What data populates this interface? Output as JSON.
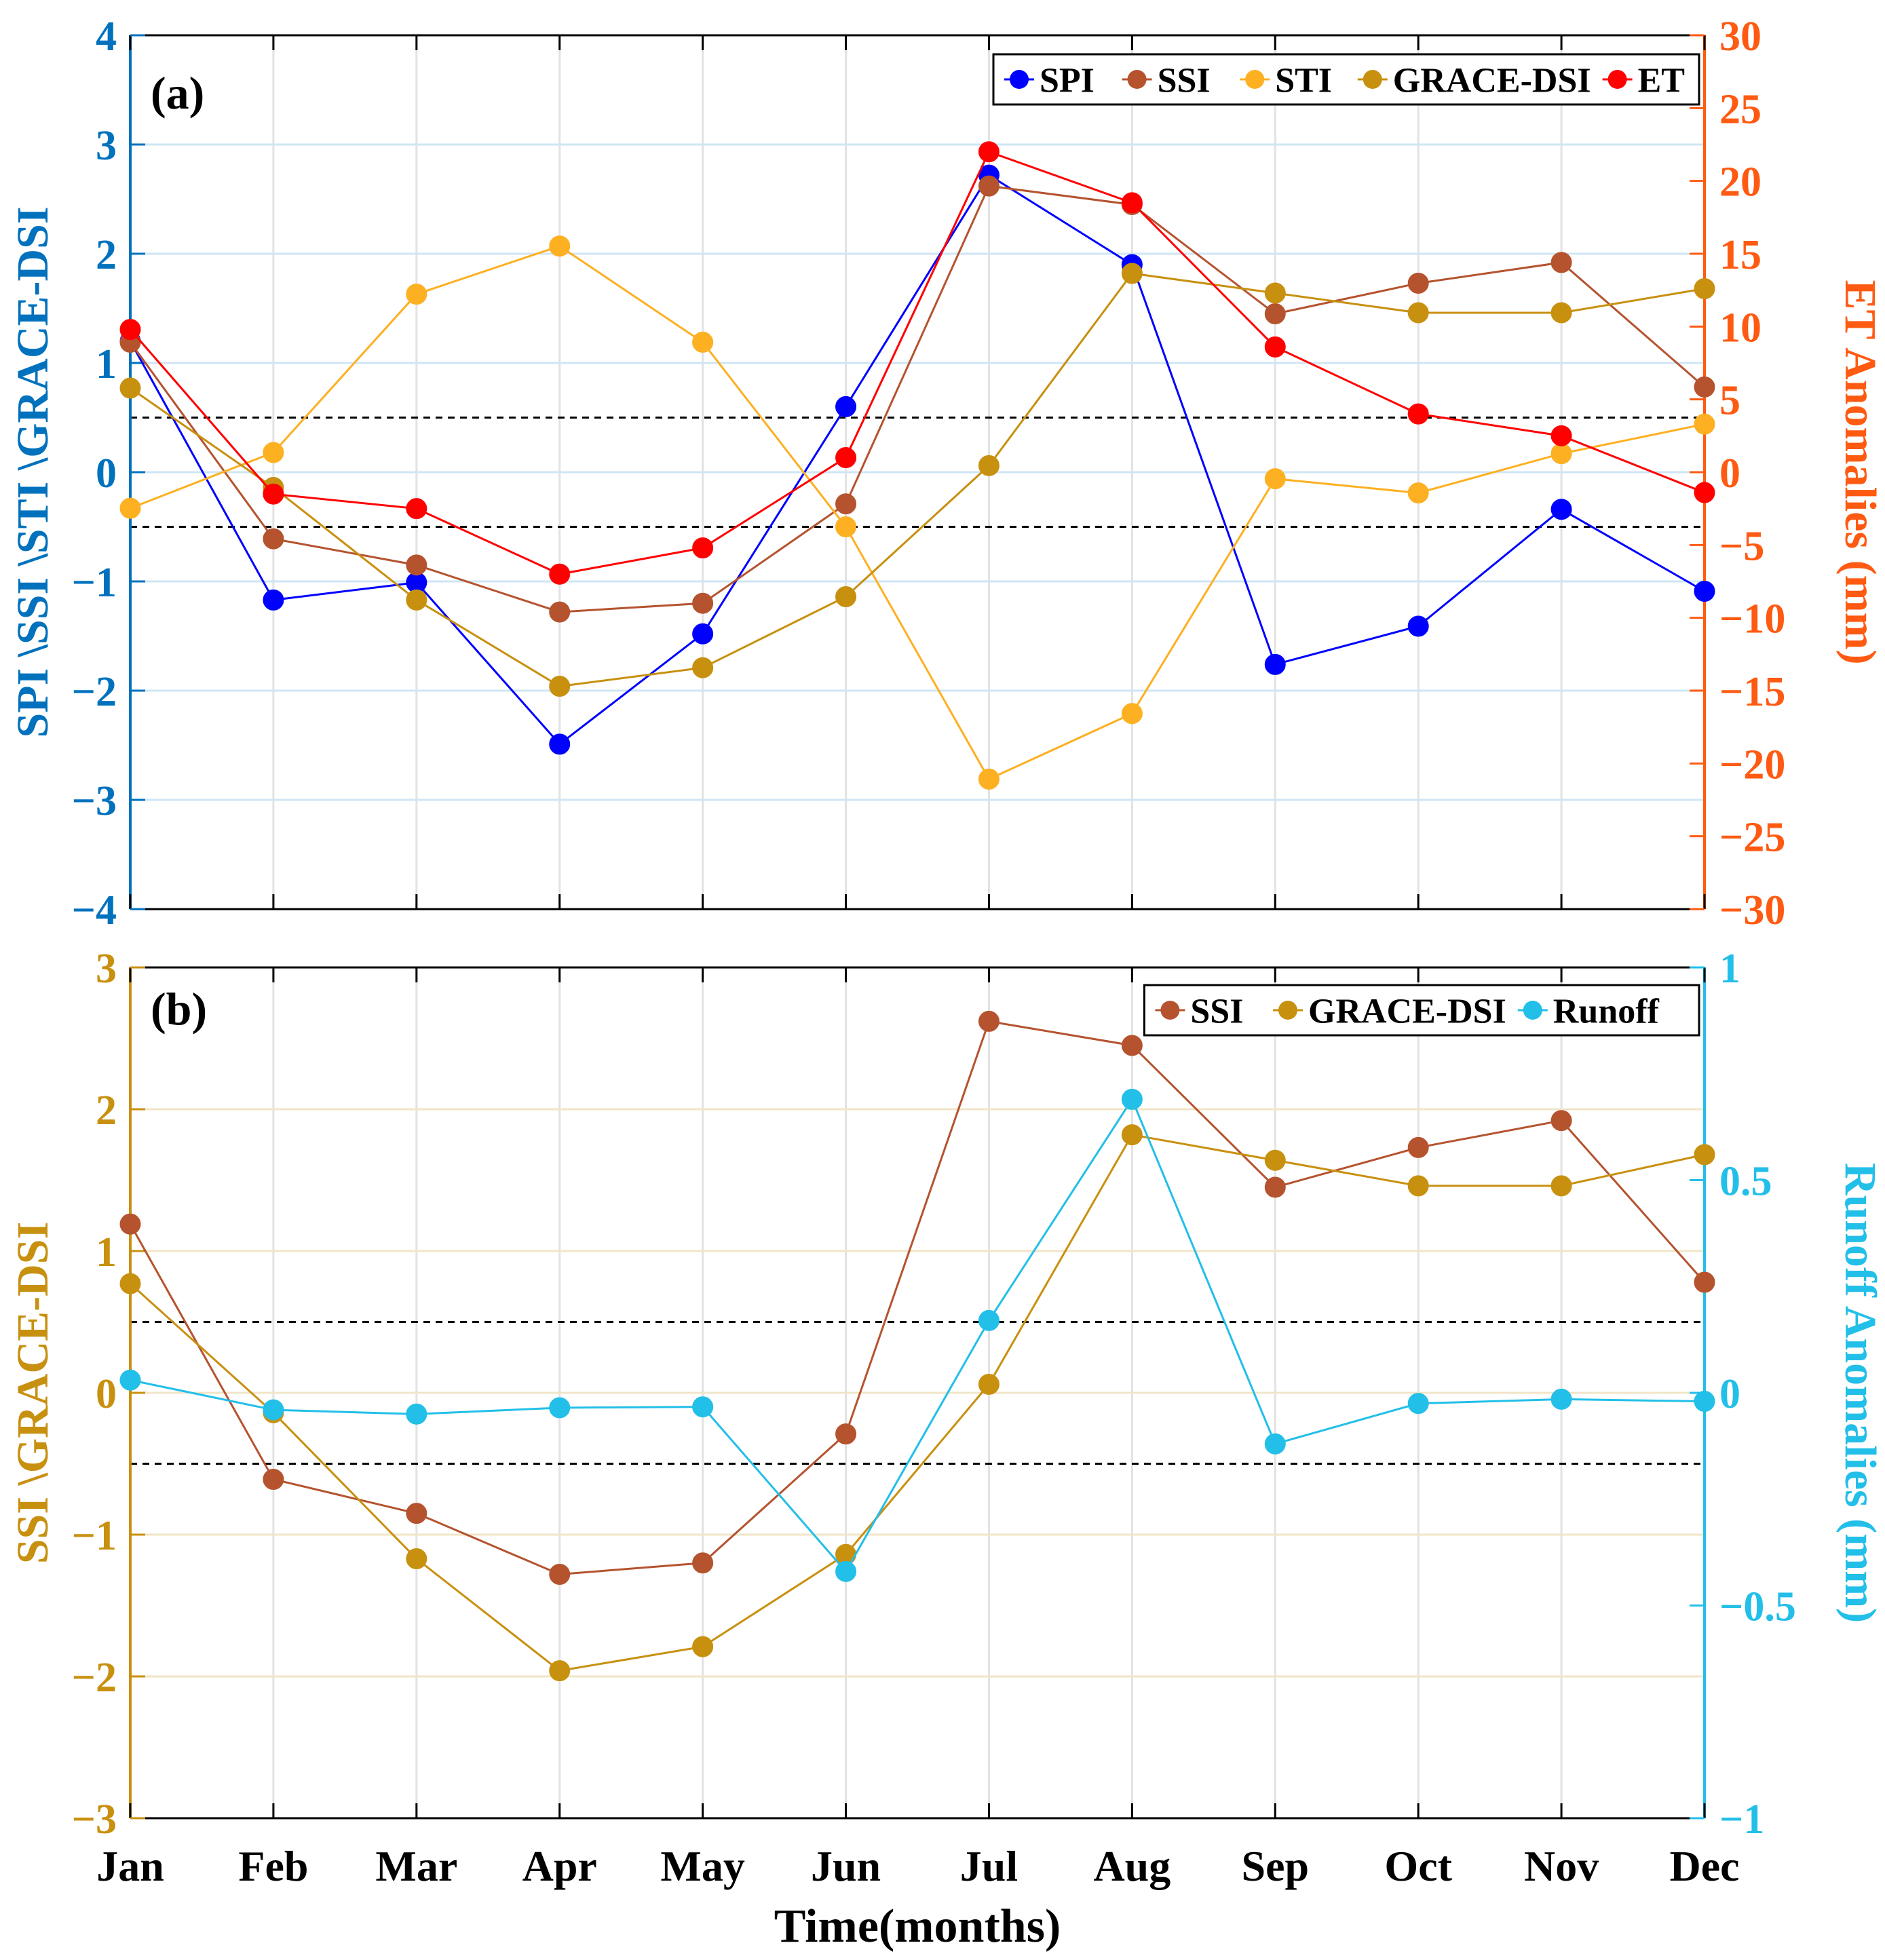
{
  "chart_data": [
    {
      "type": "line",
      "panel_label": "(a)",
      "categories": [
        "Jan",
        "Feb",
        "Mar",
        "Apr",
        "May",
        "Jun",
        "Jul",
        "Aug",
        "Sep",
        "Oct",
        "Nov",
        "Dec"
      ],
      "ylabel_left": "SPI \\SSI \\STI \\GRACE-DSI",
      "ylabel_right": "ET Anomalies (mm)",
      "ylim_left": [
        -4,
        4
      ],
      "ylim_right": [
        -30,
        30
      ],
      "yticks_left": [
        "−4",
        "−3",
        "−2",
        "−1",
        "0",
        "1",
        "2",
        "3",
        "4"
      ],
      "yticks_right": [
        "−30",
        "−25",
        "−20",
        "−15",
        "−10",
        "−5",
        "0",
        "5",
        "10",
        "15",
        "20",
        "25",
        "30"
      ],
      "reference_lines": [
        0.5,
        -0.5
      ],
      "grid": true,
      "legend": "top-right",
      "left_axis_color": "#0072BD",
      "right_axis_color": "#FF5A12",
      "series": [
        {
          "name": "SPI",
          "axis": "left",
          "color": "#0000FF",
          "values": [
            1.2,
            -1.17,
            -1.01,
            -2.49,
            -1.48,
            0.6,
            2.72,
            1.9,
            -1.76,
            -1.41,
            -0.34,
            -1.09
          ]
        },
        {
          "name": "SSI",
          "axis": "left",
          "color": "#B5532F",
          "values": [
            1.19,
            -0.61,
            -0.85,
            -1.28,
            -1.2,
            -0.29,
            2.62,
            2.45,
            1.45,
            1.73,
            1.92,
            0.78
          ]
        },
        {
          "name": "STI",
          "axis": "left",
          "color": "#FDB021",
          "values": [
            -0.33,
            0.18,
            1.63,
            2.07,
            1.19,
            -0.5,
            -2.81,
            -2.21,
            -0.06,
            -0.19,
            0.17,
            0.44
          ]
        },
        {
          "name": "GRACE-DSI",
          "axis": "left",
          "color": "#C8900F",
          "values": [
            0.77,
            -0.14,
            -1.17,
            -1.96,
            -1.79,
            -1.14,
            0.06,
            1.82,
            1.64,
            1.46,
            1.46,
            1.68
          ]
        },
        {
          "name": "ET",
          "axis": "right",
          "color": "#FF0000",
          "values": [
            9.8,
            -1.5,
            -2.5,
            -7.0,
            -5.2,
            1.0,
            22.0,
            18.5,
            8.6,
            4.0,
            2.5,
            -1.4
          ]
        }
      ]
    },
    {
      "type": "line",
      "panel_label": "(b)",
      "categories": [
        "Jan",
        "Feb",
        "Mar",
        "Apr",
        "May",
        "Jun",
        "Jul",
        "Aug",
        "Sep",
        "Oct",
        "Nov",
        "Dec"
      ],
      "xlabel": "Time(months)",
      "ylabel_left": "SSI \\GRACE-DSI",
      "ylabel_right": "Runoff Anomalies (mm)",
      "ylim_left": [
        -3,
        3
      ],
      "ylim_right": [
        -1,
        1
      ],
      "yticks_left": [
        "−3",
        "−2",
        "−1",
        "0",
        "1",
        "2",
        "3"
      ],
      "yticks_right": [
        "−1",
        "−0.5",
        "0",
        "0.5",
        "1"
      ],
      "reference_lines": [
        0.5,
        -0.5
      ],
      "grid": true,
      "legend": "top-right",
      "left_axis_color": "#C8900F",
      "right_axis_color": "#22BFE8",
      "series": [
        {
          "name": "SSI",
          "axis": "left",
          "color": "#B5532F",
          "values": [
            1.19,
            -0.61,
            -0.85,
            -1.28,
            -1.2,
            -0.29,
            2.62,
            2.45,
            1.45,
            1.73,
            1.92,
            0.78
          ]
        },
        {
          "name": "GRACE-DSI",
          "axis": "left",
          "color": "#C8900F",
          "values": [
            0.77,
            -0.14,
            -1.17,
            -1.96,
            -1.79,
            -1.14,
            0.06,
            1.82,
            1.64,
            1.46,
            1.46,
            1.68
          ]
        },
        {
          "name": "Runoff",
          "axis": "right",
          "color": "#22BFE8",
          "values": [
            0.03,
            -0.04,
            -0.05,
            -0.035,
            -0.033,
            -0.42,
            0.17,
            0.69,
            -0.12,
            -0.025,
            -0.015,
            -0.02
          ]
        }
      ]
    }
  ]
}
